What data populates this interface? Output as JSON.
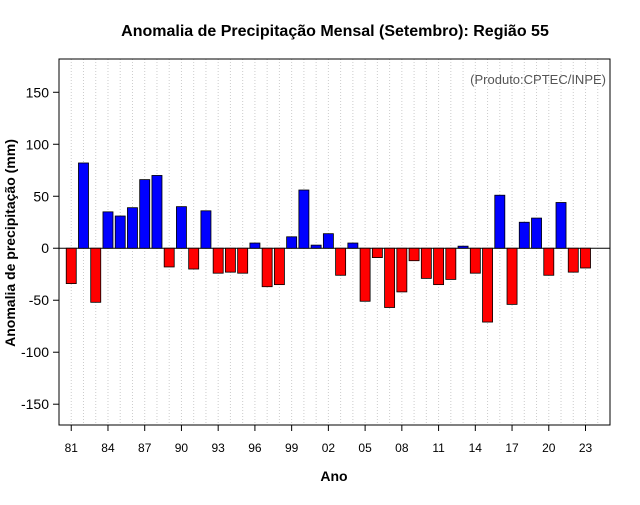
{
  "chart_data": {
    "type": "bar",
    "title": "Anomalia de Precipitação Mensal (Setembro): Região 55",
    "annotation": "(Produto:CPTEC/INPE)",
    "xlabel": "Ano",
    "ylabel": "Anomalia de precipitação (mm)",
    "ylim": [
      -170,
      182
    ],
    "xlim": [
      1980,
      2025
    ],
    "y_ticks": [
      -150,
      -100,
      -50,
      0,
      50,
      100,
      150
    ],
    "x_ticks": [
      {
        "year": 1981,
        "label": "81"
      },
      {
        "year": 1984,
        "label": "84"
      },
      {
        "year": 1987,
        "label": "87"
      },
      {
        "year": 1990,
        "label": "90"
      },
      {
        "year": 1993,
        "label": "93"
      },
      {
        "year": 1996,
        "label": "96"
      },
      {
        "year": 1999,
        "label": "99"
      },
      {
        "year": 2002,
        "label": "02"
      },
      {
        "year": 2005,
        "label": "05"
      },
      {
        "year": 2008,
        "label": "08"
      },
      {
        "year": 2011,
        "label": "11"
      },
      {
        "year": 2014,
        "label": "14"
      },
      {
        "year": 2017,
        "label": "17"
      },
      {
        "year": 2020,
        "label": "20"
      },
      {
        "year": 2023,
        "label": "23"
      }
    ],
    "vertical_grid": "dotted, every year",
    "colors": {
      "positive": "#0000ff",
      "negative": "#ff0000",
      "grid": "#cccccc",
      "axis": "#000000",
      "annotation": "#555555"
    },
    "x": [
      1981,
      1982,
      1983,
      1984,
      1985,
      1986,
      1987,
      1988,
      1989,
      1990,
      1991,
      1992,
      1993,
      1994,
      1995,
      1996,
      1997,
      1998,
      1999,
      2000,
      2001,
      2002,
      2003,
      2004,
      2005,
      2006,
      2007,
      2008,
      2009,
      2010,
      2011,
      2012,
      2013,
      2014,
      2015,
      2016,
      2017,
      2018,
      2019,
      2020,
      2021,
      2022,
      2023
    ],
    "values": [
      -34,
      82,
      -52,
      35,
      31,
      39,
      66,
      70,
      -18,
      40,
      -20,
      36,
      -24,
      -23,
      -24,
      5,
      -37,
      -35,
      11,
      56,
      3,
      14,
      -26,
      5,
      -51,
      -9,
      -57,
      -42,
      -12,
      -29,
      -35,
      -30,
      2,
      -24,
      -71,
      51,
      -54,
      25,
      29,
      -26,
      44,
      -23,
      -19
    ]
  }
}
